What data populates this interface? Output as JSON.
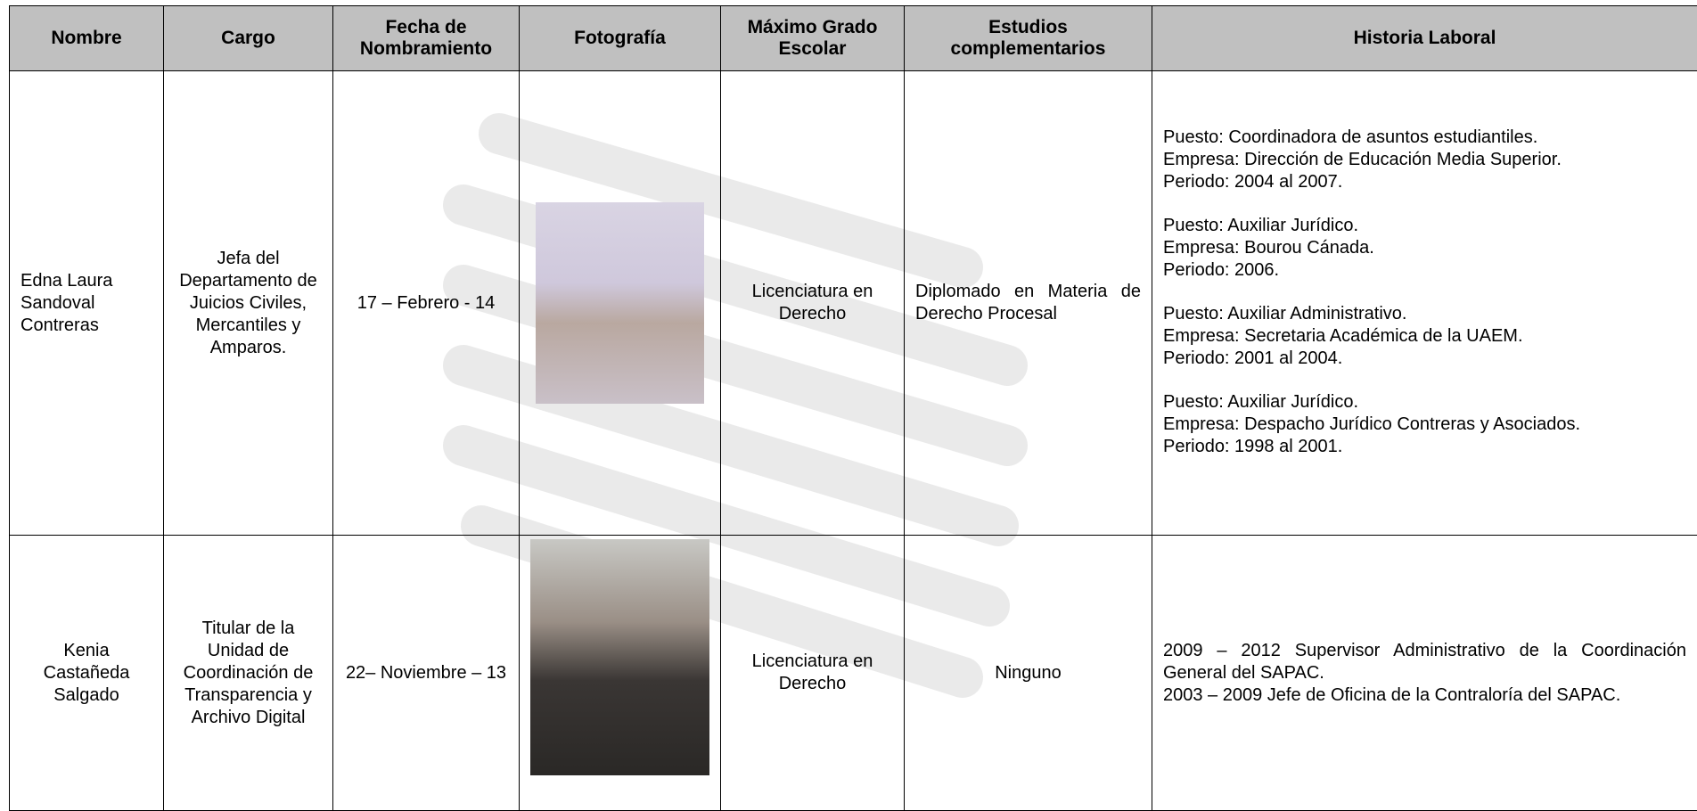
{
  "table": {
    "headers": [
      "Nombre",
      "Cargo",
      "Fecha de Nombramiento",
      "Fotografía",
      "Máximo Grado Escolar",
      "Estudios complementarios",
      "Historia Laboral"
    ],
    "rows": [
      {
        "nombre": "Edna Laura Sandoval Contreras",
        "cargo": "Jefa del Departamento de Juicios Civiles, Mercantiles y Amparos.",
        "fecha": "17 – Febrero - 14",
        "grado": "Licenciatura en Derecho",
        "estudios": "Diplomado en Materia de Derecho Procesal",
        "historia": [
          [
            "Puesto: Coordinadora de asuntos estudiantiles.",
            "Empresa: Dirección de Educación Media Superior.",
            "Periodo: 2004 al 2007."
          ],
          [
            "Puesto: Auxiliar Jurídico.",
            "Empresa: Bourou Cánada.",
            "Periodo: 2006."
          ],
          [
            "Puesto: Auxiliar Administrativo.",
            "Empresa: Secretaria Académica de la UAEM.",
            "Periodo: 2001 al 2004."
          ],
          [
            "Puesto: Auxiliar Jurídico.",
            "Empresa: Despacho Jurídico Contreras y Asociados.",
            "Periodo: 1998 al 2001."
          ]
        ]
      },
      {
        "nombre": "Kenia Castañeda Salgado",
        "cargo": "Titular de la Unidad de Coordinación de Transparencia y Archivo Digital",
        "fecha": "22– Noviembre – 13",
        "grado": "Licenciatura en Derecho",
        "estudios": "Ninguno",
        "historia": [
          [
            "2009 – 2012 Supervisor Administrativo de la Coordinación General del SAPAC."
          ],
          [
            "2003 – 2009 Jefe de Oficina de la Contraloría del SAPAC."
          ]
        ]
      }
    ]
  }
}
